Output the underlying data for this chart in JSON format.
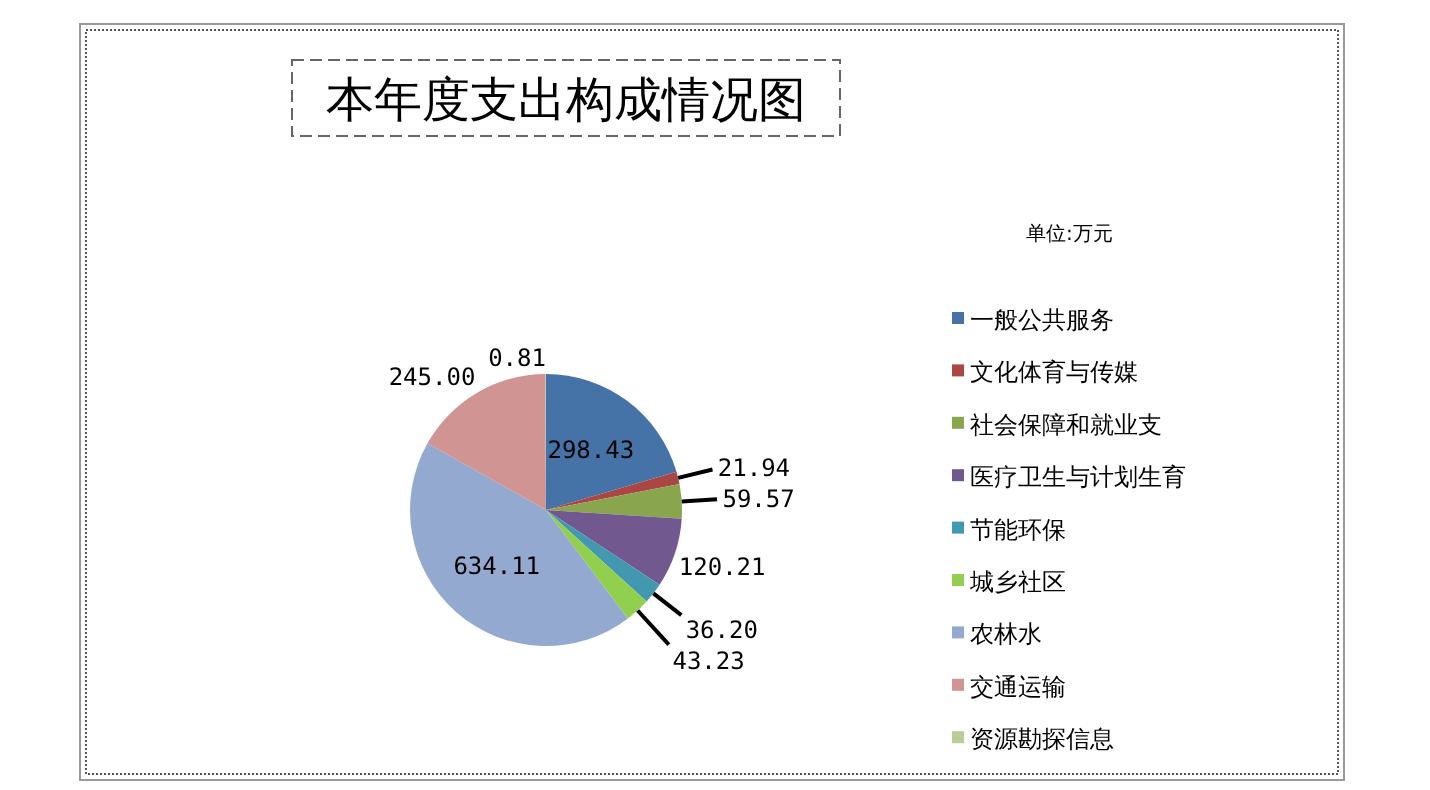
{
  "chart_data": {
    "type": "pie",
    "title": "本年度支出构成情况图",
    "subtitle": "单位:万元",
    "categories": [
      "一般公共服务",
      "文化体育与传媒",
      "社会保障和就业支",
      "医疗卫生与计划生育",
      "节能环保",
      "城乡社区",
      "农林水",
      "交通运输",
      "资源勘探信息"
    ],
    "values": [
      298.43,
      21.94,
      59.57,
      120.21,
      36.2,
      43.23,
      634.11,
      245.0,
      0.81
    ],
    "colors": [
      "#4572a7",
      "#aa4643",
      "#89a54e",
      "#71588f",
      "#4198af",
      "#93cf4e",
      "#93a9cf",
      "#d09493",
      "#b9cd96"
    ],
    "data_labels": true,
    "value_labels": [
      "298.43",
      "21.94",
      "59.57",
      "120.21",
      "36.20",
      "43.23",
      "634.11",
      "245.00",
      "0.81"
    ],
    "legend": "right"
  }
}
